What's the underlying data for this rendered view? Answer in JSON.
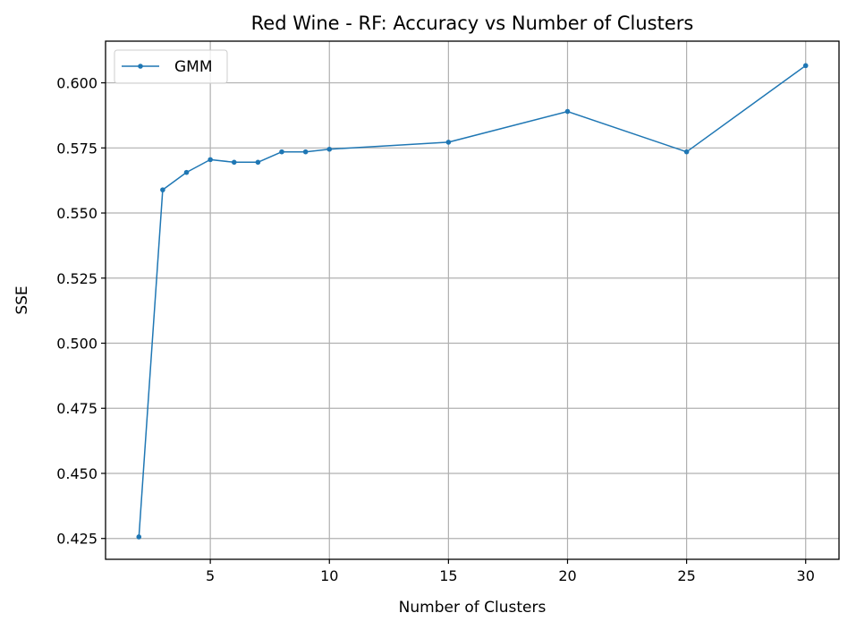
{
  "chart_data": {
    "type": "line",
    "title": "Red Wine - RF: Accuracy vs Number of Clusters",
    "xlabel": "Number of Clusters",
    "ylabel": "SSE",
    "xlim": [
      0.6,
      31.4
    ],
    "ylim": [
      0.417,
      0.616
    ],
    "xticks": [
      5,
      10,
      15,
      20,
      25,
      30
    ],
    "xtick_labels": [
      "5",
      "10",
      "15",
      "20",
      "25",
      "30"
    ],
    "yticks": [
      0.425,
      0.45,
      0.475,
      0.5,
      0.525,
      0.55,
      0.575,
      0.6
    ],
    "ytick_labels": [
      "0.425",
      "0.450",
      "0.475",
      "0.500",
      "0.525",
      "0.550",
      "0.575",
      "0.600"
    ],
    "grid": true,
    "legend_position": "top-left",
    "series": [
      {
        "name": "GMM",
        "color": "#1f77b4",
        "x": [
          2,
          3,
          4,
          5,
          6,
          7,
          8,
          9,
          10,
          15,
          20,
          25,
          30
        ],
        "y": [
          0.4256,
          0.5589,
          0.5656,
          0.5705,
          0.5695,
          0.5695,
          0.5735,
          0.5735,
          0.5745,
          0.5772,
          0.589,
          0.5735,
          0.6066
        ]
      }
    ]
  }
}
